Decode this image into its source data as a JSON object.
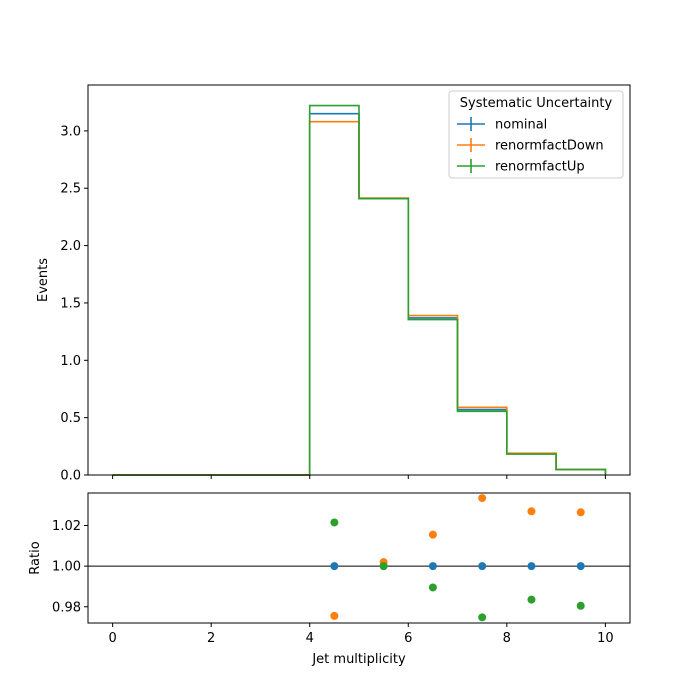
{
  "chart_data": [
    {
      "type": "line",
      "panel": "main",
      "ylabel": "Events",
      "xlim": [
        -0.5,
        10.5
      ],
      "ylim": [
        0,
        3.4
      ],
      "yticks": [
        0.0,
        0.5,
        1.0,
        1.5,
        2.0,
        2.5,
        3.0
      ],
      "ytick_labels": [
        "0.0",
        "0.5",
        "1.0",
        "1.5",
        "2.0",
        "2.5",
        "3.0"
      ],
      "bin_edges": [
        0,
        1,
        2,
        3,
        4,
        5,
        6,
        7,
        8,
        9,
        10
      ],
      "legend": {
        "title": "Systematic Uncertainty",
        "placement": "top-right"
      },
      "series": [
        {
          "name": "nominal",
          "color": "#1f77b4",
          "values": [
            0,
            0,
            0,
            0,
            3.15,
            2.41,
            1.37,
            0.57,
            0.185,
            0.048
          ]
        },
        {
          "name": "renormfactDown",
          "color": "#ff7f0e",
          "values": [
            0,
            0,
            0,
            0,
            3.08,
            2.415,
            1.39,
            0.59,
            0.19,
            0.049
          ]
        },
        {
          "name": "renormfactUp",
          "color": "#2ca02c",
          "values": [
            0,
            0,
            0,
            0,
            3.22,
            2.41,
            1.355,
            0.555,
            0.182,
            0.047
          ]
        }
      ]
    },
    {
      "type": "scatter",
      "panel": "ratio",
      "xlabel": "Jet multiplicity",
      "ylabel": "Ratio",
      "xlim": [
        -0.5,
        10.5
      ],
      "ylim": [
        0.972,
        1.036
      ],
      "xticks": [
        0,
        2,
        4,
        6,
        8,
        10
      ],
      "xtick_labels": [
        "0",
        "2",
        "4",
        "6",
        "8",
        "10"
      ],
      "yticks": [
        0.98,
        1.0,
        1.02
      ],
      "ytick_labels": [
        "0.98",
        "1.00",
        "1.02"
      ],
      "reference_line": 1.0,
      "series": [
        {
          "name": "nominal",
          "color": "#1f77b4",
          "x": [
            4.5,
            5.5,
            6.5,
            7.5,
            8.5,
            9.5
          ],
          "y": [
            1.0,
            1.0,
            1.0,
            1.0,
            1.0,
            1.0
          ]
        },
        {
          "name": "renormfactDown",
          "color": "#ff7f0e",
          "x": [
            4.5,
            5.5,
            6.5,
            7.5,
            8.5,
            9.5
          ],
          "y": [
            0.9755,
            1.002,
            1.0155,
            1.0335,
            1.027,
            1.0265
          ]
        },
        {
          "name": "renormfactUp",
          "color": "#2ca02c",
          "x": [
            4.5,
            5.5,
            6.5,
            7.5,
            8.5,
            9.5
          ],
          "y": [
            1.0215,
            1.0,
            0.9895,
            0.9748,
            0.9835,
            0.9805
          ]
        }
      ]
    }
  ]
}
